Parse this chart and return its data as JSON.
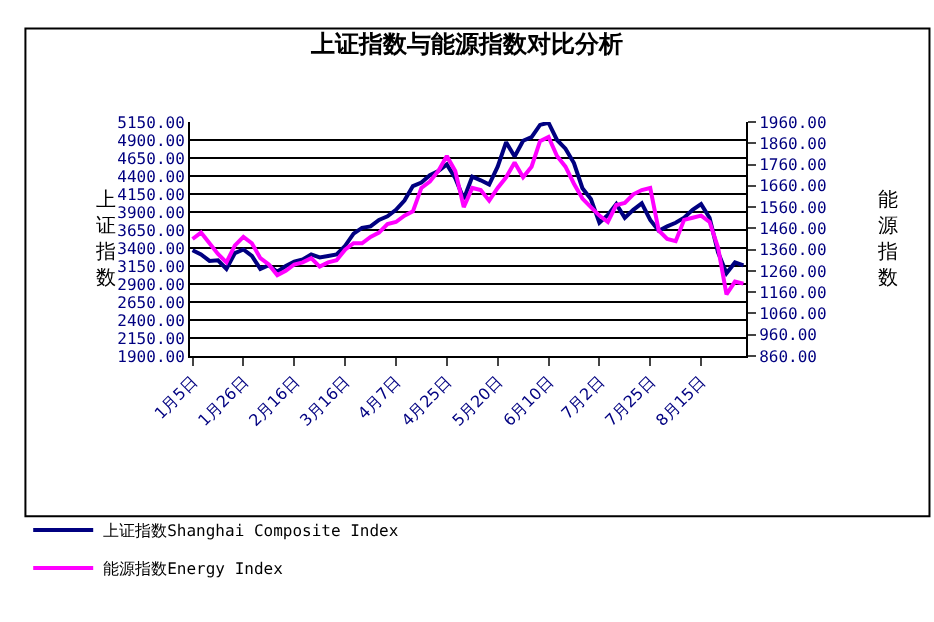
{
  "chart_data": {
    "type": "line",
    "title": "上证指数与能源指数对比分析",
    "ylabel": "上证指数",
    "y2label": "能源指数",
    "categories": [
      "1月5日",
      null,
      null,
      null,
      null,
      null,
      "1月26日",
      null,
      null,
      null,
      null,
      null,
      "2月16日",
      null,
      null,
      null,
      null,
      null,
      "3月16日",
      null,
      null,
      null,
      null,
      null,
      "4月7日",
      null,
      null,
      null,
      null,
      null,
      "4月25日",
      null,
      null,
      null,
      null,
      null,
      "5月20日",
      null,
      null,
      null,
      null,
      null,
      "6月10日",
      null,
      null,
      null,
      null,
      null,
      "7月2日",
      null,
      null,
      null,
      null,
      null,
      "7月25日",
      null,
      null,
      null,
      null,
      null,
      "8月15日",
      null,
      null,
      null,
      null,
      null
    ],
    "series": [
      {
        "name": "上证指数Shanghai Composite Index",
        "color": "#000080",
        "values": [
          3370,
          3310,
          3220,
          3230,
          3110,
          3330,
          3380,
          3290,
          3110,
          3160,
          3070,
          3150,
          3210,
          3240,
          3310,
          3270,
          3290,
          3310,
          3430,
          3600,
          3680,
          3700,
          3790,
          3840,
          3930,
          4060,
          4260,
          4310,
          4410,
          4470,
          4560,
          4370,
          4080,
          4390,
          4340,
          4280,
          4530,
          4870,
          4670,
          4890,
          4940,
          5110,
          5140,
          4900,
          4780,
          4580,
          4230,
          4080,
          3750,
          3860,
          4010,
          3820,
          3930,
          4020,
          3790,
          3640,
          3700,
          3750,
          3820,
          3930,
          4010,
          3820,
          3340,
          3050,
          3200,
          3160
        ]
      },
      {
        "name": "能源指数Energy Index",
        "color": "#ff00ff",
        "axis": "y2",
        "values": [
          1410,
          1440,
          1390,
          1340,
          1300,
          1380,
          1420,
          1390,
          1320,
          1290,
          1240,
          1260,
          1290,
          1300,
          1320,
          1280,
          1300,
          1310,
          1360,
          1390,
          1390,
          1420,
          1440,
          1480,
          1490,
          1520,
          1540,
          1650,
          1680,
          1730,
          1800,
          1730,
          1560,
          1650,
          1640,
          1590,
          1650,
          1700,
          1770,
          1700,
          1750,
          1870,
          1890,
          1800,
          1750,
          1670,
          1600,
          1560,
          1520,
          1490,
          1570,
          1580,
          1620,
          1640,
          1650,
          1450,
          1410,
          1400,
          1500,
          1510,
          1520,
          1490,
          1370,
          1150,
          1210,
          1200
        ]
      }
    ],
    "ylim": [
      1900,
      5150
    ],
    "yticks": [
      {
        "value": 1900,
        "label": "1900.00"
      },
      {
        "value": 2150,
        "label": "2150.00"
      },
      {
        "value": 2400,
        "label": "2400.00"
      },
      {
        "value": 2650,
        "label": "2650.00"
      },
      {
        "value": 2900,
        "label": "2900.00"
      },
      {
        "value": 3150,
        "label": "3150.00"
      },
      {
        "value": 3400,
        "label": "3400.00"
      },
      {
        "value": 3650,
        "label": "3650.00"
      },
      {
        "value": 3900,
        "label": "3900.00"
      },
      {
        "value": 4150,
        "label": "4150.00"
      },
      {
        "value": 4400,
        "label": "4400.00"
      },
      {
        "value": 4650,
        "label": "4650.00"
      },
      {
        "value": 4900,
        "label": "4900.00"
      },
      {
        "value": 5150,
        "label": "5150.00"
      }
    ],
    "y2lim": [
      860,
      1960
    ],
    "y2ticks": [
      {
        "value": 860,
        "label": "860.00"
      },
      {
        "value": 960,
        "label": "960.00"
      },
      {
        "value": 1060,
        "label": "1060.00"
      },
      {
        "value": 1160,
        "label": "1160.00"
      },
      {
        "value": 1260,
        "label": "1260.00"
      },
      {
        "value": 1360,
        "label": "1360.00"
      },
      {
        "value": 1460,
        "label": "1460.00"
      },
      {
        "value": 1560,
        "label": "1560.00"
      },
      {
        "value": 1660,
        "label": "1660.00"
      },
      {
        "value": 1760,
        "label": "1760.00"
      },
      {
        "value": 1860,
        "label": "1860.00"
      },
      {
        "value": 1960,
        "label": "1960.00"
      }
    ],
    "grid": "y",
    "legend": "bottom",
    "marker": "none",
    "line_style": "solid"
  }
}
